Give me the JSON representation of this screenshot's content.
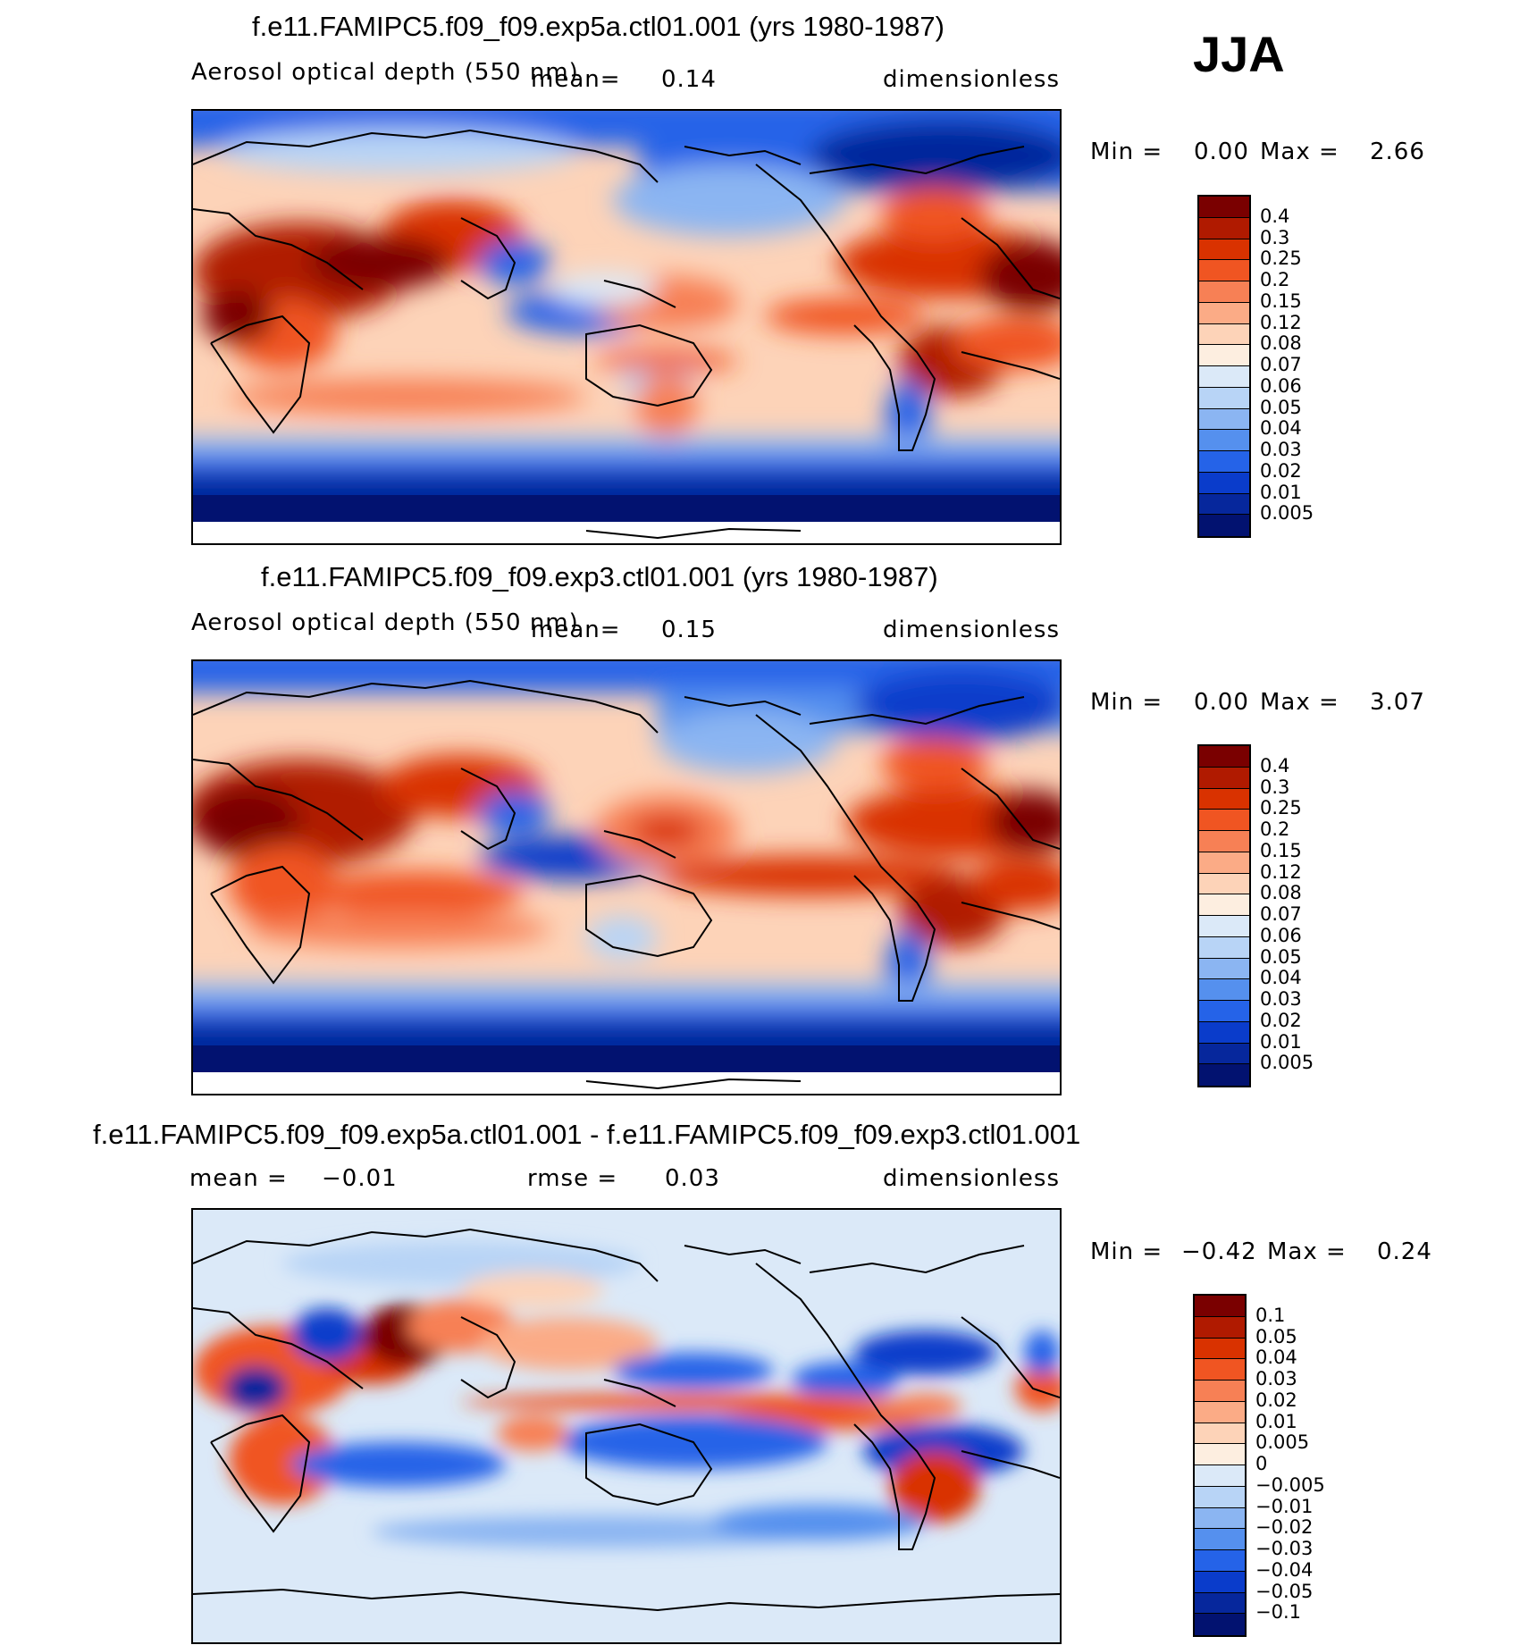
{
  "season": "JJA",
  "panels": [
    {
      "title": "f.e11.FAMIPC5.f09_f09.exp5a.ctl01.001 (yrs 1980-1987)",
      "variable": "Aerosol optical depth (550 nm)",
      "mean_label": "mean=",
      "mean_value": "0.14",
      "units": "dimensionless",
      "min_label": "Min =",
      "min_value": "0.00",
      "max_label": "Max =",
      "max_value": "2.66",
      "colorbar": {
        "labels": [
          "0.4",
          "0.3",
          "0.25",
          "0.2",
          "0.15",
          "0.12",
          "0.08",
          "0.07",
          "0.06",
          "0.05",
          "0.04",
          "0.03",
          "0.02",
          "0.01",
          "0.005"
        ],
        "colors": [
          "#7a0000",
          "#b01a00",
          "#d93200",
          "#f05522",
          "#f78055",
          "#fbab86",
          "#fdd3b8",
          "#fdeee0",
          "#dbe9f8",
          "#b8d4f6",
          "#8bb5f2",
          "#5590ee",
          "#2563e8",
          "#0a3ccb",
          "#06279c",
          "#021270"
        ]
      }
    },
    {
      "title": "f.e11.FAMIPC5.f09_f09.exp3.ctl01.001 (yrs 1980-1987)",
      "variable": "Aerosol optical depth (550 nm)",
      "mean_label": "mean=",
      "mean_value": "0.15",
      "units": "dimensionless",
      "min_label": "Min =",
      "min_value": "0.00",
      "max_label": "Max =",
      "max_value": "3.07",
      "colorbar": {
        "labels": [
          "0.4",
          "0.3",
          "0.25",
          "0.2",
          "0.15",
          "0.12",
          "0.08",
          "0.07",
          "0.06",
          "0.05",
          "0.04",
          "0.03",
          "0.02",
          "0.01",
          "0.005"
        ],
        "colors": [
          "#7a0000",
          "#b01a00",
          "#d93200",
          "#f05522",
          "#f78055",
          "#fbab86",
          "#fdd3b8",
          "#fdeee0",
          "#dbe9f8",
          "#b8d4f6",
          "#8bb5f2",
          "#5590ee",
          "#2563e8",
          "#0a3ccb",
          "#06279c",
          "#021270"
        ]
      }
    },
    {
      "title": "f.e11.FAMIPC5.f09_f09.exp5a.ctl01.001 - f.e11.FAMIPC5.f09_f09.exp3.ctl01.001",
      "mean_label": "mean =",
      "mean_value": "−0.01",
      "rmse_label": "rmse =",
      "rmse_value": "0.03",
      "units": "dimensionless",
      "min_label": "Min =",
      "min_value": "−0.42",
      "max_label": "Max =",
      "max_value": "0.24",
      "colorbar": {
        "labels": [
          "0.1",
          "0.05",
          "0.04",
          "0.03",
          "0.02",
          "0.01",
          "0.005",
          "0",
          "−0.005",
          "−0.01",
          "−0.02",
          "−0.03",
          "−0.04",
          "−0.05",
          "−0.1"
        ],
        "colors": [
          "#7a0000",
          "#b01a00",
          "#d93200",
          "#f05522",
          "#f78055",
          "#fbab86",
          "#fdd3b8",
          "#fdeee0",
          "#dbe9f8",
          "#b8d4f6",
          "#8bb5f2",
          "#5590ee",
          "#2563e8",
          "#0a3ccb",
          "#06279c",
          "#021270"
        ]
      }
    }
  ]
}
